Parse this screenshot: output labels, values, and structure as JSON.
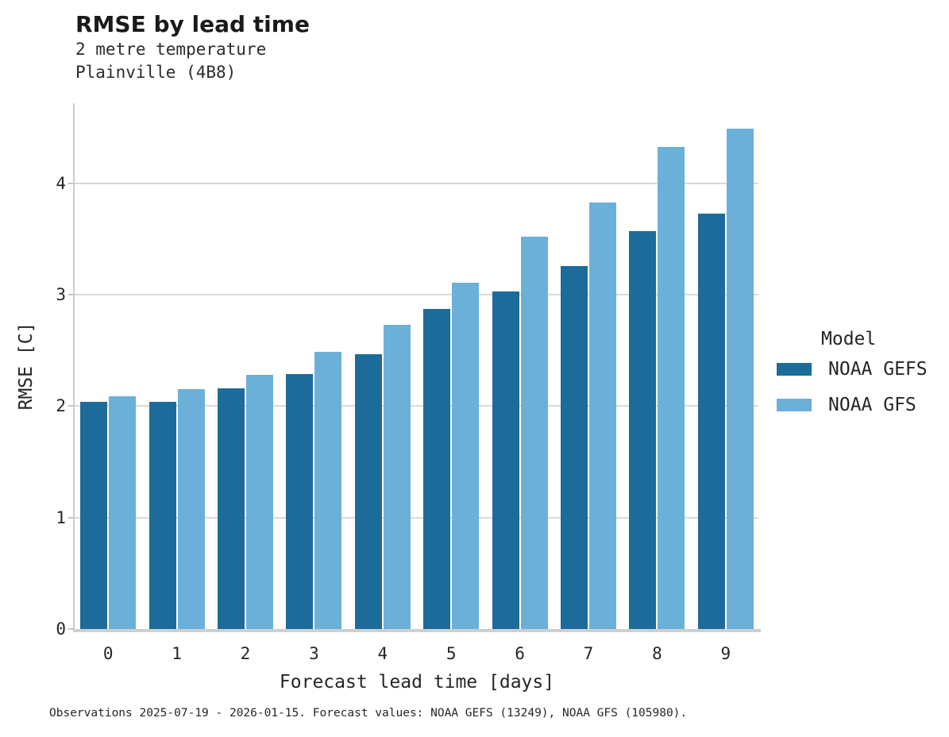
{
  "header": {
    "title": "RMSE by lead time",
    "subtitle_line1": "2 metre temperature",
    "subtitle_line2": "Plainville (4B8)"
  },
  "caption": "Observations 2025-07-19 - 2026-01-15. Forecast values: NOAA GEFS (13249), NOAA GFS (105980).",
  "colors": {
    "gefs_bar": "#1c6b9a",
    "gfs_bar": "#6bb0d9",
    "gridline": "#d9d9d9",
    "axis": "#cccccc",
    "text": "#262626"
  },
  "chart_data": {
    "type": "bar",
    "title": "RMSE by lead time",
    "subtitle": [
      "2 metre temperature",
      "Plainville (4B8)"
    ],
    "xlabel": "Forecast lead time [days]",
    "ylabel": "RMSE [C]",
    "categories": [
      "0",
      "1",
      "2",
      "3",
      "4",
      "5",
      "6",
      "7",
      "8",
      "9"
    ],
    "series": [
      {
        "name": "NOAA GEFS",
        "color": "#1c6b9a",
        "values": [
          2.04,
          2.04,
          2.16,
          2.29,
          2.47,
          2.87,
          3.03,
          3.26,
          3.57,
          3.73
        ]
      },
      {
        "name": "NOAA GFS",
        "color": "#6bb0d9",
        "values": [
          2.09,
          2.15,
          2.28,
          2.49,
          2.73,
          3.11,
          3.52,
          3.83,
          4.33,
          4.49
        ]
      }
    ],
    "ylim": [
      0,
      4.72
    ],
    "yticks": [
      "0",
      "1",
      "2",
      "3",
      "4"
    ],
    "grid": true,
    "legend_title": "Model",
    "legend_position": "right"
  }
}
